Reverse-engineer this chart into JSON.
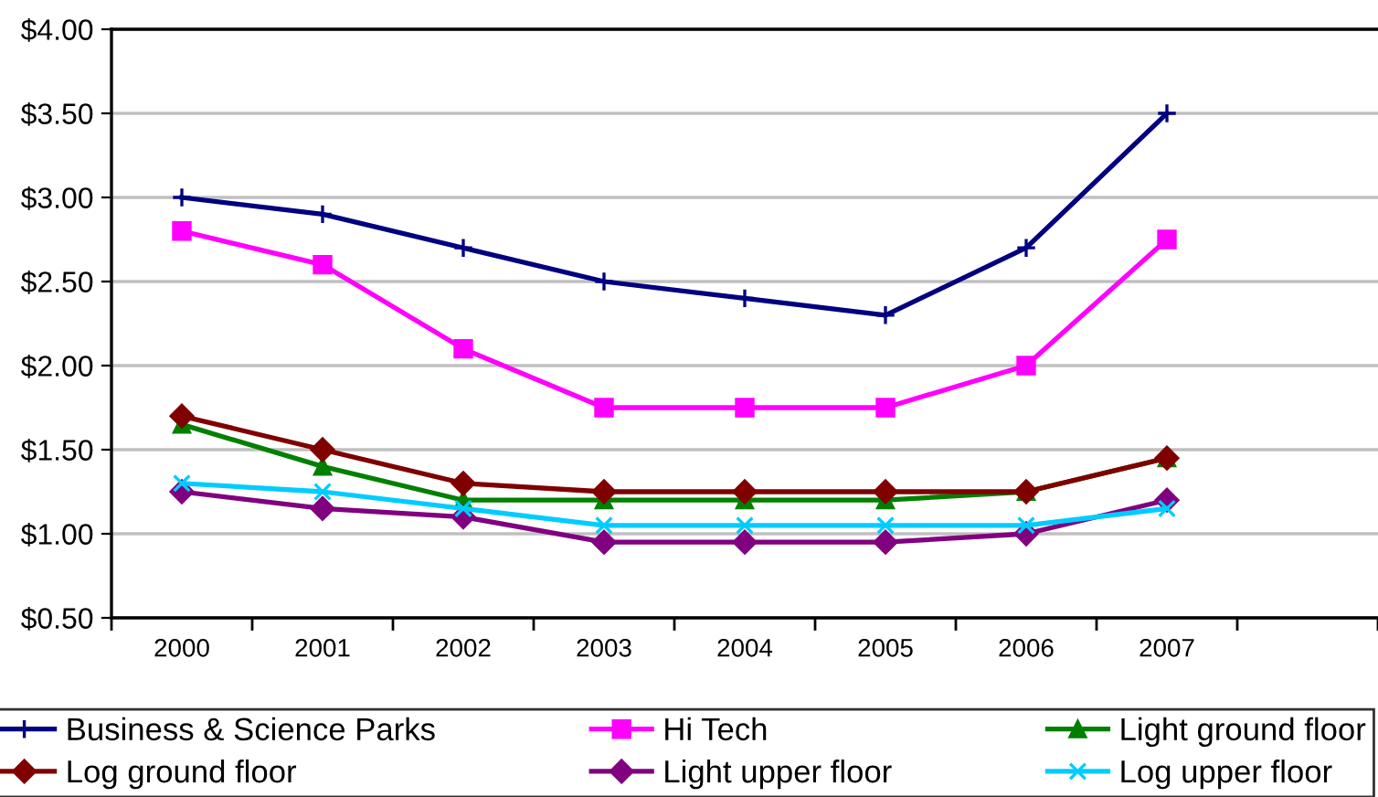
{
  "chart_data": {
    "type": "line",
    "categories": [
      "2000",
      "2001",
      "2002",
      "2003",
      "2004",
      "2005",
      "2006",
      "2007",
      null
    ],
    "series": [
      {
        "name": "Business & Science Parks",
        "color": "#000080",
        "marker": "cross",
        "values": [
          3.0,
          2.9,
          2.7,
          2.5,
          2.4,
          2.3,
          2.7,
          3.5,
          null
        ]
      },
      {
        "name": "Hi Tech",
        "color": "#ff00ff",
        "marker": "square",
        "values": [
          2.8,
          2.6,
          2.1,
          1.75,
          1.75,
          1.75,
          2.0,
          2.75,
          null
        ]
      },
      {
        "name": "Light ground floor",
        "color": "#008000",
        "marker": "triangle",
        "values": [
          1.65,
          1.4,
          1.2,
          1.2,
          1.2,
          1.2,
          1.25,
          1.45,
          null
        ]
      },
      {
        "name": "Log ground floor",
        "color": "#800000",
        "marker": "diamond",
        "values": [
          1.7,
          1.5,
          1.3,
          1.25,
          1.25,
          1.25,
          1.25,
          1.45,
          null
        ]
      },
      {
        "name": "Light upper floor",
        "color": "#800080",
        "marker": "diamond",
        "values": [
          1.25,
          1.15,
          1.1,
          0.95,
          0.95,
          0.95,
          1.0,
          1.2,
          null
        ]
      },
      {
        "name": "Log upper floor",
        "color": "#00ccff",
        "marker": "x",
        "values": [
          1.3,
          1.25,
          1.15,
          1.05,
          1.05,
          1.05,
          1.05,
          1.15,
          null
        ]
      }
    ],
    "ylim": [
      0.5,
      4.0
    ],
    "yticks": [
      {
        "value": 0.5,
        "label": "$0.50"
      },
      {
        "value": 1.0,
        "label": "$1.00"
      },
      {
        "value": 1.5,
        "label": "$1.50"
      },
      {
        "value": 2.0,
        "label": "$2.00"
      },
      {
        "value": 2.5,
        "label": "$2.50"
      },
      {
        "value": 3.0,
        "label": "$3.00"
      },
      {
        "value": 3.5,
        "label": "$3.50"
      },
      {
        "value": 4.0,
        "label": "$4.00"
      }
    ],
    "grid": "y",
    "legend": "bottom",
    "line_style": "solid"
  }
}
